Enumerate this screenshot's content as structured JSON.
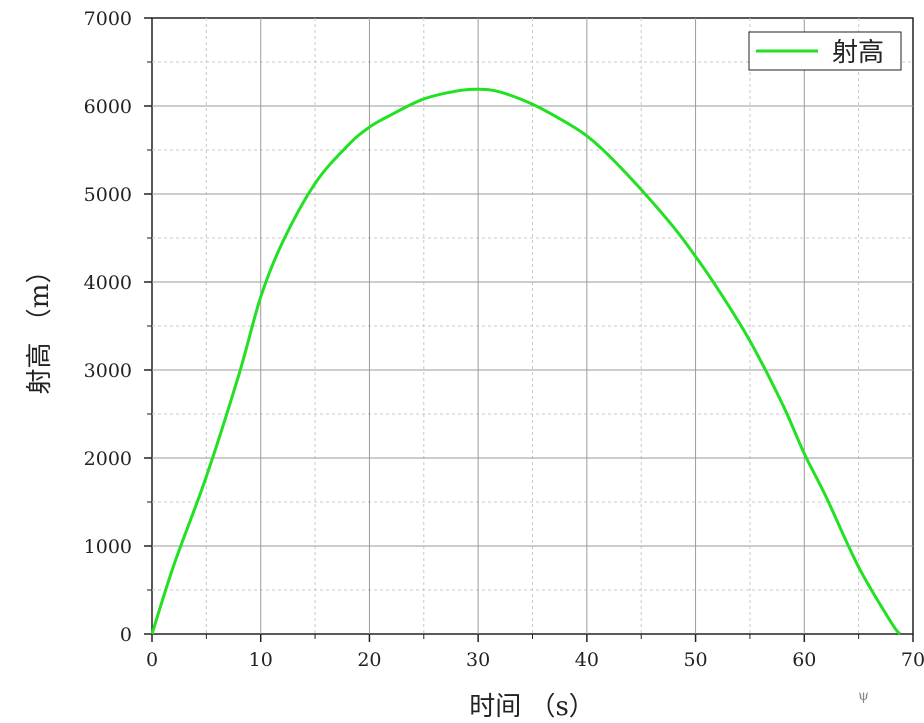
{
  "chart_data": {
    "type": "line",
    "xlabel": "时间 （s）",
    "ylabel": "射高 （m）",
    "xlim": [
      0,
      70
    ],
    "ylim": [
      0,
      7000
    ],
    "x_ticks": [
      0,
      10,
      20,
      30,
      40,
      50,
      60,
      70
    ],
    "y_ticks": [
      0,
      1000,
      2000,
      3000,
      4000,
      5000,
      6000,
      7000
    ],
    "grid": true,
    "legend_position": "top-right",
    "series": [
      {
        "name": "射高",
        "color": "#22e022",
        "x": [
          0,
          2,
          5,
          8,
          10,
          12,
          15,
          18,
          20,
          22,
          25,
          28,
          30,
          32,
          35,
          38,
          40,
          42,
          45,
          48,
          50,
          52,
          55,
          58,
          60,
          62,
          65,
          68,
          68.8
        ],
        "y": [
          0,
          780,
          1790,
          2950,
          3830,
          4450,
          5120,
          5550,
          5760,
          5900,
          6080,
          6170,
          6190,
          6160,
          6020,
          5820,
          5660,
          5440,
          5050,
          4620,
          4290,
          3930,
          3330,
          2610,
          2050,
          1560,
          760,
          130,
          0
        ]
      }
    ]
  },
  "corner_mark": "ψ"
}
